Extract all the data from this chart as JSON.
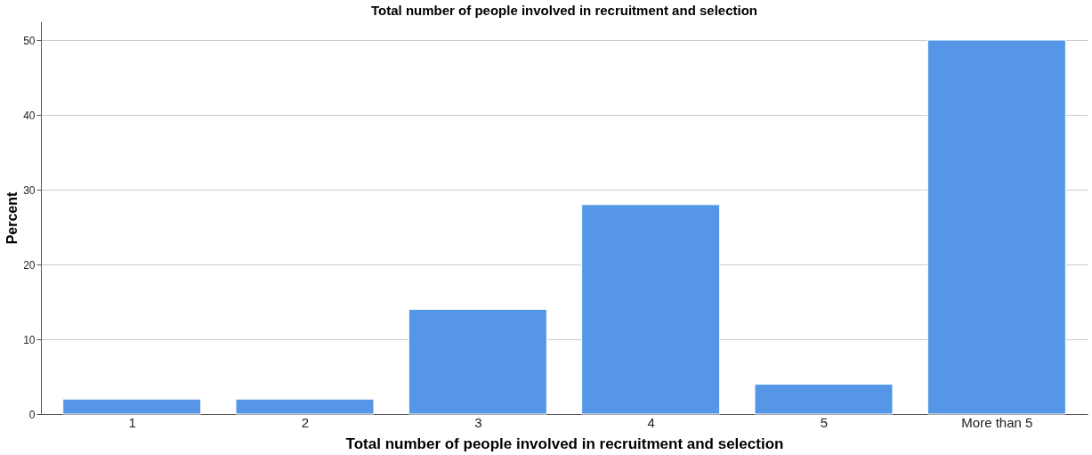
{
  "chart_data": {
    "type": "bar",
    "title": "Total number of people involved in recruitment and selection",
    "xlabel": "Total number of people involved in recruitment and selection",
    "ylabel": "Percent",
    "categories": [
      "1",
      "2",
      "3",
      "4",
      "5",
      "More than 5"
    ],
    "values": [
      2,
      2,
      14,
      28,
      4,
      50
    ],
    "color": "#5596e6",
    "ylim": [
      0,
      52.5
    ],
    "yticks": [
      0,
      10,
      20,
      30,
      40,
      50
    ],
    "grid": "y"
  }
}
